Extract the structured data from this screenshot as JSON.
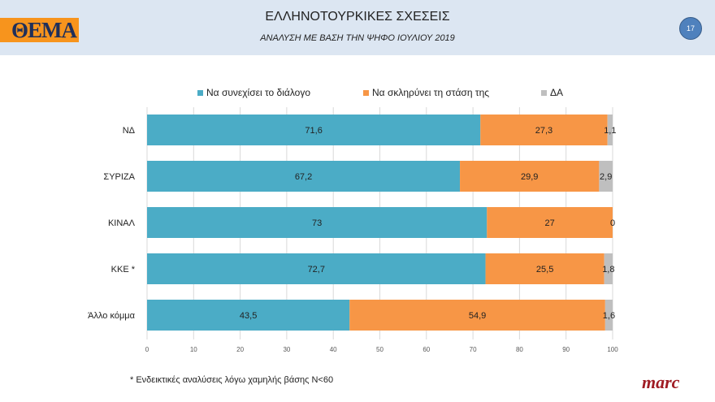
{
  "header": {
    "title": "ΕΛΛΗΝΟΤΟΥΡΚΙΚΕΣ ΣΧΕΣΕΙΣ",
    "subtitle": "ΑΝΑΛΥΣΗ ΜΕ ΒΑΣΗ ΤΗΝ ΨΗΦΟ ΙΟΥΛΙΟΥ 2019",
    "logo": "ΘΕΜΑ",
    "page_number": "17"
  },
  "footer": {
    "footnote": "* Ενδεικτικές αναλύσεις λόγω χαμηλής βάσης Ν<60",
    "brand": "marc"
  },
  "chart_data": {
    "type": "bar",
    "orientation": "horizontal",
    "stacked": true,
    "categories": [
      "ΝΔ",
      "ΣΥΡΙΖΑ",
      "ΚΙΝΑΛ",
      "ΚΚΕ *",
      "Άλλο κόμμα"
    ],
    "series": [
      {
        "name": "Να συνεχίσει το διάλογο",
        "color": "#4bacc6",
        "values": [
          71.6,
          67.2,
          73,
          72.7,
          43.5
        ],
        "labels": [
          "71,6",
          "67,2",
          "73",
          "72,7",
          "43,5"
        ]
      },
      {
        "name": "Να σκληρύνει τη στάση της",
        "color": "#f79646",
        "values": [
          27.3,
          29.9,
          27,
          25.5,
          54.9
        ],
        "labels": [
          "27,3",
          "29,9",
          "27",
          "25,5",
          "54,9"
        ]
      },
      {
        "name": "ΔΑ",
        "color": "#bfbfbf",
        "values": [
          1.1,
          2.9,
          0,
          1.8,
          1.6
        ],
        "labels": [
          "1,1",
          "2,9",
          "0",
          "1,8",
          "1,6"
        ]
      }
    ],
    "xlim": [
      0,
      100
    ],
    "xticks": [
      0,
      10,
      20,
      30,
      40,
      50,
      60,
      70,
      80,
      90,
      100
    ],
    "grid": true,
    "legend": "top"
  }
}
